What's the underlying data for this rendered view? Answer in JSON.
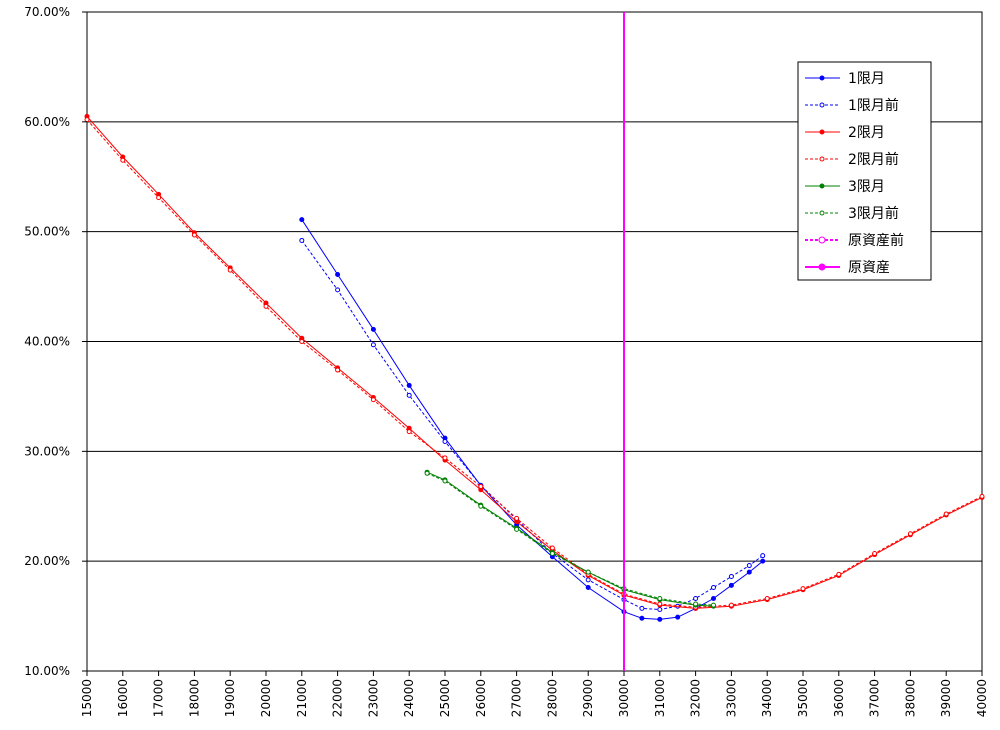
{
  "chart_data": {
    "type": "line",
    "xlim": [
      15000,
      40000
    ],
    "xticks": [
      15000,
      16000,
      17000,
      18000,
      19000,
      20000,
      21000,
      22000,
      23000,
      24000,
      25000,
      26000,
      27000,
      28000,
      29000,
      30000,
      31000,
      32000,
      33000,
      34000,
      35000,
      36000,
      37000,
      38000,
      39000,
      40000
    ],
    "ylim": [
      10,
      70
    ],
    "yticks": [
      {
        "value": 10,
        "label": "10.00%"
      },
      {
        "value": 20,
        "label": "20.00%"
      },
      {
        "value": 30,
        "label": "30.00%"
      },
      {
        "value": 40,
        "label": "40.00%"
      },
      {
        "value": 50,
        "label": "50.00%"
      },
      {
        "value": 60,
        "label": "60.00%"
      },
      {
        "value": 70,
        "label": "70.00%"
      }
    ],
    "grid": true,
    "legend": "right",
    "series": [
      {
        "name": "1限月",
        "color": "#0000ff",
        "style": "solid",
        "marker": "filled",
        "x": [
          21000,
          22000,
          23000,
          24000,
          25000,
          26000,
          27000,
          28000,
          29000,
          30000,
          30500,
          31000,
          31500,
          32000,
          32500,
          33000,
          33500,
          33875
        ],
        "values": [
          51.1,
          46.1,
          41.1,
          36.0,
          31.2,
          26.9,
          23.3,
          20.4,
          17.6,
          15.4,
          14.8,
          14.7,
          14.9,
          15.7,
          16.6,
          17.8,
          19.0,
          20.0
        ]
      },
      {
        "name": "1限月前",
        "color": "#0000ff",
        "style": "dashed",
        "marker": "open",
        "x": [
          21000,
          22000,
          23000,
          24000,
          25000,
          26000,
          27000,
          28000,
          29000,
          30000,
          30500,
          31000,
          31500,
          32000,
          32500,
          33000,
          33500,
          33875
        ],
        "values": [
          49.2,
          44.7,
          39.7,
          35.1,
          30.9,
          26.9,
          23.8,
          20.7,
          18.3,
          16.5,
          15.7,
          15.6,
          15.9,
          16.6,
          17.6,
          18.6,
          19.6,
          20.5
        ]
      },
      {
        "name": "2限月",
        "color": "#ff0000",
        "style": "solid",
        "marker": "filled",
        "x": [
          15000,
          16000,
          17000,
          18000,
          19000,
          20000,
          21000,
          22000,
          23000,
          24000,
          25000,
          26000,
          27000,
          28000,
          29000,
          30000,
          31000,
          32000,
          33000,
          34000,
          35000,
          36000,
          37000,
          38000,
          39000,
          40000
        ],
        "values": [
          60.5,
          56.8,
          53.4,
          49.9,
          46.7,
          43.5,
          40.3,
          37.6,
          34.9,
          32.1,
          29.2,
          26.5,
          23.6,
          21.0,
          18.7,
          16.9,
          16.0,
          15.7,
          15.9,
          16.5,
          17.4,
          18.7,
          20.6,
          22.4,
          24.2,
          25.8
        ]
      },
      {
        "name": "2限月前",
        "color": "#ff0000",
        "style": "dashed",
        "marker": "open",
        "x": [
          15000,
          16000,
          17000,
          18000,
          19000,
          20000,
          21000,
          22000,
          23000,
          24000,
          25000,
          26000,
          27000,
          28000,
          29000,
          30000,
          31000,
          32000,
          33000,
          34000,
          35000,
          36000,
          37000,
          38000,
          39000,
          40000
        ],
        "values": [
          60.2,
          56.5,
          53.1,
          49.7,
          46.5,
          43.2,
          40.0,
          37.4,
          34.7,
          31.8,
          29.4,
          26.8,
          23.9,
          21.2,
          18.8,
          17.0,
          16.1,
          15.8,
          16.0,
          16.6,
          17.5,
          18.8,
          20.7,
          22.5,
          24.3,
          25.9
        ]
      },
      {
        "name": "3限月",
        "color": "#008000",
        "style": "solid",
        "marker": "filled",
        "x": [
          24500,
          25000,
          26000,
          27000,
          28000,
          29000,
          30000,
          31000,
          32000,
          32500
        ],
        "values": [
          28.1,
          27.4,
          25.1,
          23.0,
          20.8,
          19.0,
          17.4,
          16.5,
          16.0,
          15.9
        ]
      },
      {
        "name": "3限月前",
        "color": "#008000",
        "style": "dashed",
        "marker": "open",
        "x": [
          24500,
          25000,
          26000,
          27000,
          28000,
          29000,
          30000,
          31000,
          32000,
          32500
        ],
        "values": [
          28.0,
          27.3,
          25.0,
          22.9,
          20.7,
          19.0,
          17.5,
          16.6,
          16.1,
          16.0
        ]
      },
      {
        "name": "原資産前",
        "color": "#ff00ff",
        "style": "dashed",
        "marker": "none",
        "x": [
          30000,
          30000
        ],
        "values": [
          10,
          70
        ]
      },
      {
        "name": "原資産",
        "color": "#ff00ff",
        "style": "solid",
        "marker": "none",
        "x": [
          30000,
          30000
        ],
        "values": [
          10,
          70
        ]
      }
    ]
  }
}
